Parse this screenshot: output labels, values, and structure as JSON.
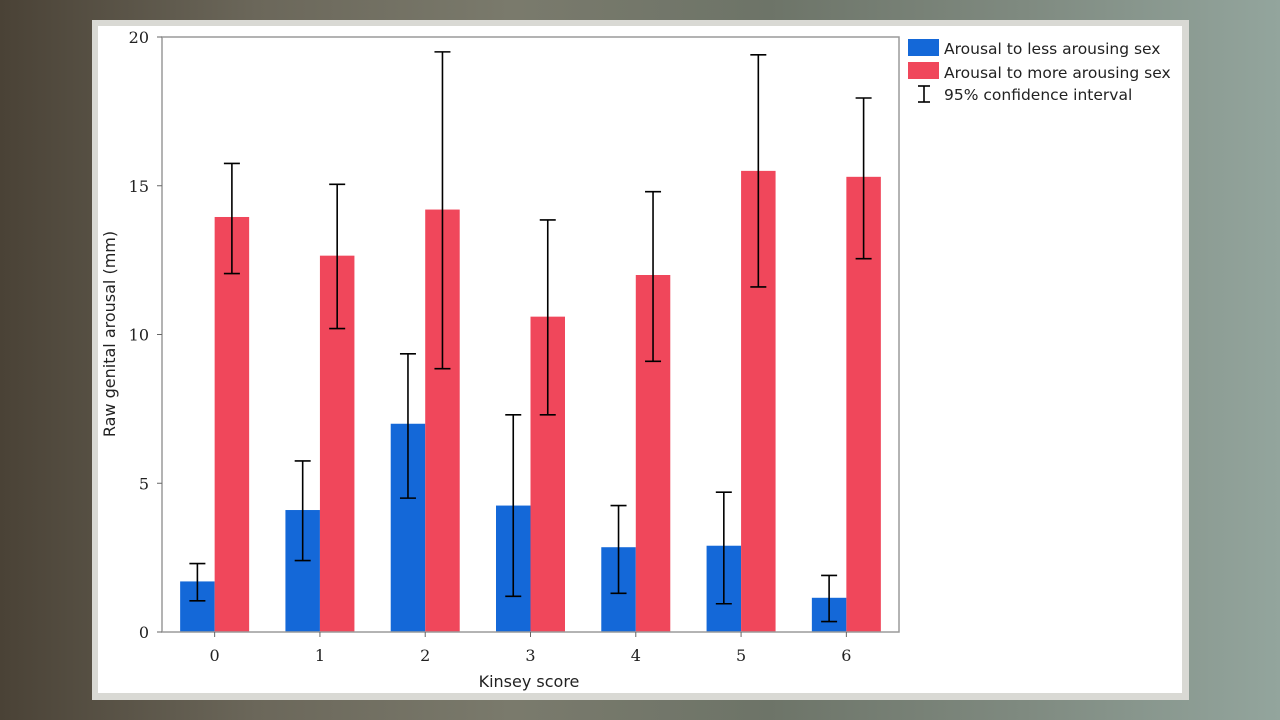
{
  "chart_data": {
    "type": "bar",
    "xlabel": "Kinsey score",
    "ylabel": "Raw genital arousal (mm)",
    "ylim": [
      0,
      20
    ],
    "yticks": [
      "0",
      "5",
      "10",
      "15",
      "20"
    ],
    "categories": [
      "0",
      "1",
      "2",
      "3",
      "4",
      "5",
      "6"
    ],
    "grid": false,
    "legend_position": "right",
    "series": [
      {
        "name": "Arousal to less arousing sex",
        "color": "#1468d8",
        "values": [
          1.7,
          4.1,
          7.0,
          4.25,
          2.85,
          2.9,
          1.15
        ],
        "ci_low": [
          1.05,
          2.4,
          4.5,
          1.2,
          1.3,
          0.95,
          0.35
        ],
        "ci_high": [
          2.3,
          5.75,
          9.35,
          7.3,
          4.25,
          4.7,
          1.9
        ]
      },
      {
        "name": "Arousal to more arousing sex",
        "color": "#f0475b",
        "values": [
          13.95,
          12.65,
          14.2,
          10.6,
          12.0,
          15.5,
          15.3
        ],
        "ci_low": [
          12.05,
          10.2,
          8.85,
          7.3,
          9.1,
          11.6,
          12.55
        ],
        "ci_high": [
          15.75,
          15.05,
          19.5,
          13.85,
          14.8,
          19.4,
          17.95
        ]
      }
    ],
    "legend_ci_label": "95% confidence interval"
  }
}
